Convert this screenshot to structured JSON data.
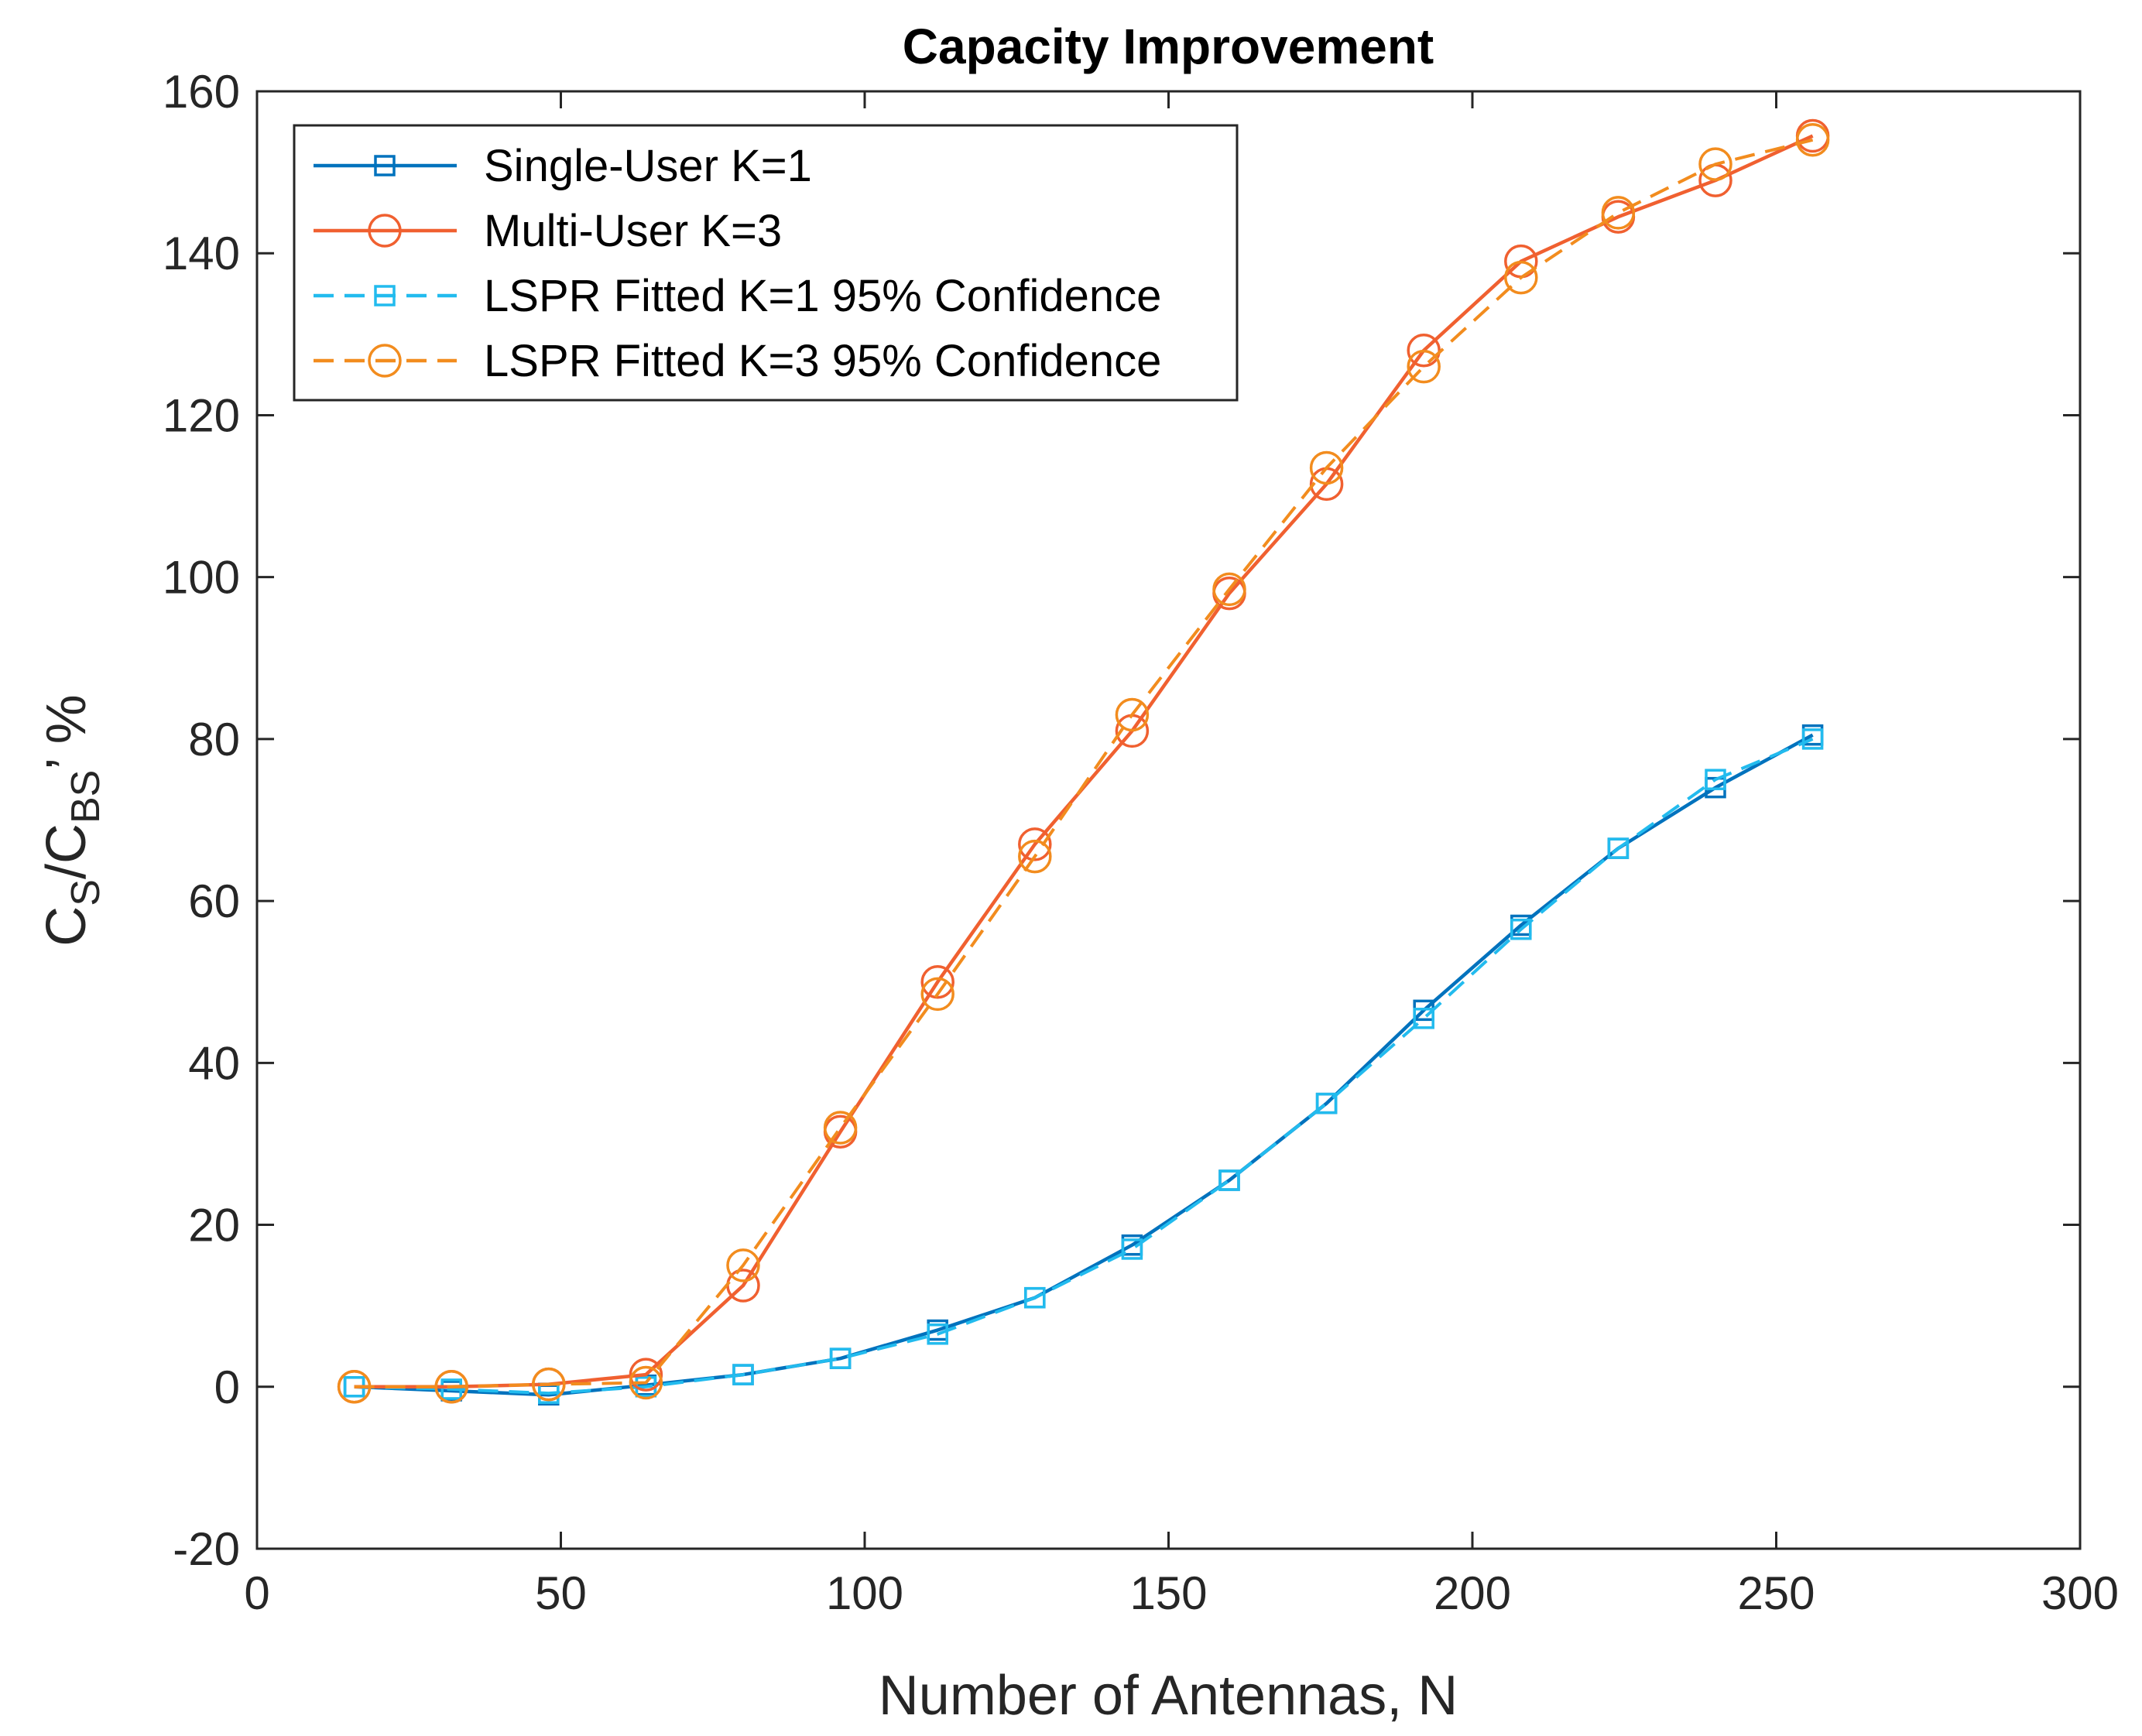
{
  "chart_data": {
    "type": "line",
    "title": "Capacity Improvement",
    "xlabel": "Number of Antennas, N",
    "ylabel": {
      "c1": "C",
      "s1": "S",
      "slash": "/C",
      "s2": "BS",
      "tail": "’ %"
    },
    "xlim": [
      0,
      300
    ],
    "ylim": [
      -20,
      160
    ],
    "xticks": [
      0,
      50,
      100,
      150,
      200,
      250,
      300
    ],
    "yticks": [
      -20,
      0,
      20,
      40,
      60,
      80,
      100,
      120,
      140,
      160
    ],
    "legend_position": "top-left",
    "x": [
      16,
      32,
      48,
      64,
      80,
      96,
      112,
      128,
      144,
      160,
      176,
      192,
      208,
      224,
      240,
      256
    ],
    "series": [
      {
        "name": "Single-User K=1",
        "color": "#0072BD",
        "marker": "square",
        "dashed": false,
        "values": [
          0,
          -0.5,
          -1,
          0.2,
          1.5,
          3.5,
          7,
          11,
          17.5,
          25.5,
          35,
          46.5,
          57,
          66.5,
          74,
          80.5
        ]
      },
      {
        "name": "Multi-User K=3",
        "color": "#F06030",
        "marker": "circle",
        "dashed": false,
        "values": [
          0,
          0,
          0.3,
          1.5,
          12.5,
          31.5,
          50,
          67,
          81,
          98,
          111.5,
          128,
          139,
          144.5,
          149,
          154.5
        ]
      },
      {
        "name": "LSPR Fitted K=1 95% Confidence",
        "color": "#22BBEE",
        "marker": "square",
        "dashed": true,
        "values": [
          0,
          -0.3,
          -0.8,
          0,
          1.5,
          3.5,
          6.5,
          11,
          17,
          25.5,
          35,
          45.5,
          56.5,
          66.5,
          75,
          80
        ]
      },
      {
        "name": "LSPR Fitted K=3 95% Confidence",
        "color": "#F28C1E",
        "marker": "circle",
        "dashed": true,
        "values": [
          0,
          0,
          0.3,
          0.5,
          15,
          32,
          48.5,
          65.5,
          83,
          98.5,
          113.5,
          126,
          137,
          145,
          151,
          154
        ]
      }
    ]
  }
}
